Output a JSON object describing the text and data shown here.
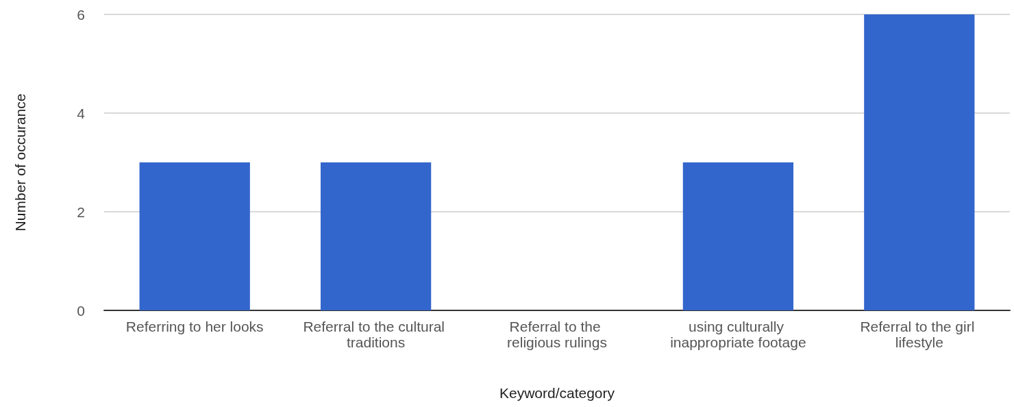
{
  "chart_data": {
    "type": "bar",
    "xlabel": "Keyword/category",
    "ylabel": "Number of occurance",
    "categories": [
      "Referring to her looks",
      "Referral to the cultural traditions",
      "Referral to the religious rulings",
      "using culturally inappropriate footage",
      "Referral to the girl lifestyle"
    ],
    "values": [
      3,
      3,
      0,
      3,
      6
    ],
    "color": "#3366cc",
    "ylim": [
      0,
      6
    ],
    "yticks": [
      0,
      2,
      4,
      6
    ],
    "grid": "y"
  }
}
